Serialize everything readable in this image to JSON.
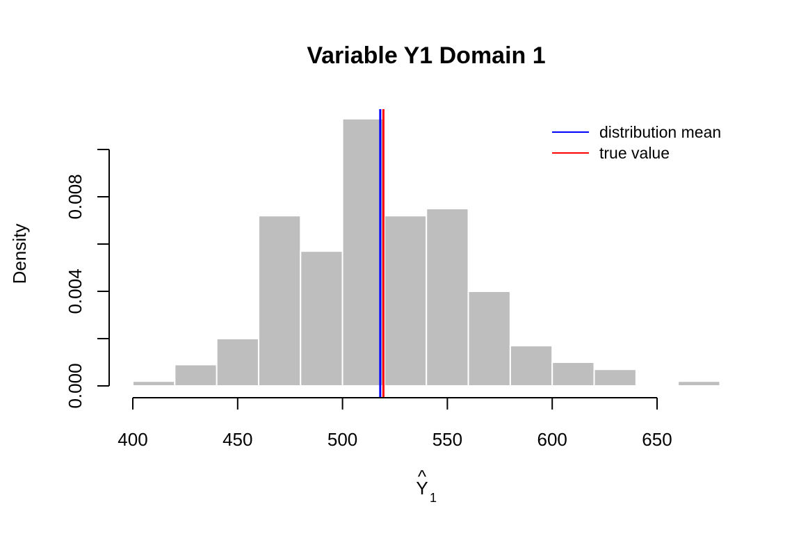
{
  "chart_data": {
    "type": "bar",
    "title": "Variable Y1 Domain 1",
    "xlabel_main": "Y",
    "xlabel_hat": "^",
    "xlabel_sub": "1",
    "ylabel": "Density",
    "xlim": [
      400,
      680
    ],
    "ylim": [
      0,
      0.012
    ],
    "bin_width": 20,
    "bin_starts": [
      400,
      420,
      440,
      460,
      480,
      500,
      520,
      540,
      560,
      580,
      600,
      620,
      640,
      660
    ],
    "densities": [
      0.0002,
      0.0009,
      0.002,
      0.0072,
      0.0057,
      0.0113,
      0.0072,
      0.0075,
      0.004,
      0.0017,
      0.001,
      0.0007,
      0.0,
      0.0002
    ],
    "x_ticks": [
      400,
      450,
      500,
      550,
      600,
      650
    ],
    "x_tick_labels": [
      "400",
      "450",
      "500",
      "550",
      "600",
      "650"
    ],
    "y_ticks": [
      0,
      0.002,
      0.004,
      0.006,
      0.008,
      0.01
    ],
    "y_tick_labels": [
      "0.000",
      "",
      "0.004",
      "",
      "0.008",
      ""
    ],
    "distribution_mean": 518,
    "true_value": 519.5,
    "legend": {
      "placement": "top-right",
      "items": [
        {
          "label": "distribution mean",
          "color": "#0000ff"
        },
        {
          "label": "true value",
          "color": "#ff0000"
        }
      ]
    },
    "bar_fill": "#bebebe",
    "bar_border": "#ffffff",
    "grid": false
  }
}
